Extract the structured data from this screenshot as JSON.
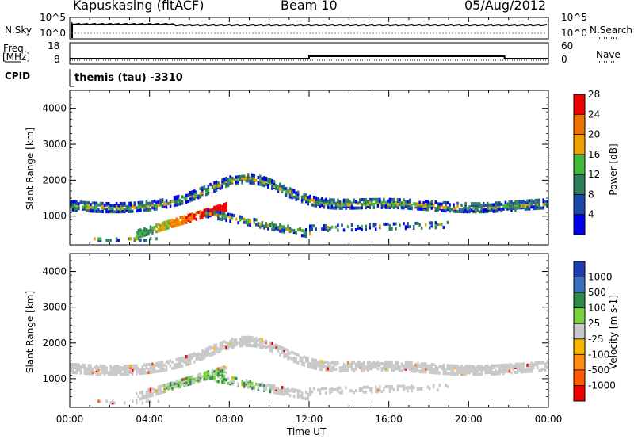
{
  "header": {
    "station": "Kapuskasing (fitACF)",
    "beam": "Beam 10",
    "date": "05/Aug/2012"
  },
  "aux_panels": {
    "nsky_label": "N.Sky",
    "nsky_ticks": [
      "10^5",
      "10^0"
    ],
    "nsearch_label": "N.Search",
    "nsearch_ticks": [
      "10^5",
      "10^0"
    ],
    "freq_label": "Freq.",
    "freq_unit": "[MHz]",
    "freq_ticks": [
      "18",
      "8"
    ],
    "nave_label": "Nave",
    "nave_ticks": [
      "60",
      "0"
    ],
    "cpid_label": "CPID",
    "cpid_value": "themis (tau) -3310"
  },
  "chart_data": [
    {
      "type": "heatmap",
      "name": "power",
      "ylabel": "Slant Range [km]",
      "ylim": [
        200,
        4500
      ],
      "yticks": [
        1000,
        2000,
        3000,
        4000
      ],
      "xlim": [
        0,
        24
      ],
      "colorbar_label": "Power [dB]",
      "colorbar_ticks": [
        "4",
        "8",
        "12",
        "16",
        "20",
        "24",
        "28"
      ],
      "colors": [
        "#0000ee",
        "#1a48a8",
        "#2e7d5a",
        "#44b83a",
        "#f0a000",
        "#f07000",
        "#ee0000"
      ]
    },
    {
      "type": "heatmap",
      "name": "velocity",
      "xlabel": "Time UT",
      "ylabel": "Slant Range [km]",
      "ylim": [
        200,
        4500
      ],
      "yticks": [
        1000,
        2000,
        3000,
        4000
      ],
      "xlim": [
        0,
        24
      ],
      "xticks": [
        "00:00",
        "04:00",
        "08:00",
        "12:00",
        "16:00",
        "20:00",
        "00:00"
      ],
      "colorbar_label": "Velocity [m s-1]",
      "colorbar_ticks": [
        "-1000",
        "-500",
        "-100",
        "-25",
        "25",
        "100",
        "500",
        "1000"
      ],
      "colors": [
        "#ee0000",
        "#ff5a00",
        "#ff8c10",
        "#f5b400",
        "#c8c8c8",
        "#7ad13e",
        "#2e8c4a",
        "#3a70c0",
        "#1b3cb4"
      ]
    }
  ]
}
